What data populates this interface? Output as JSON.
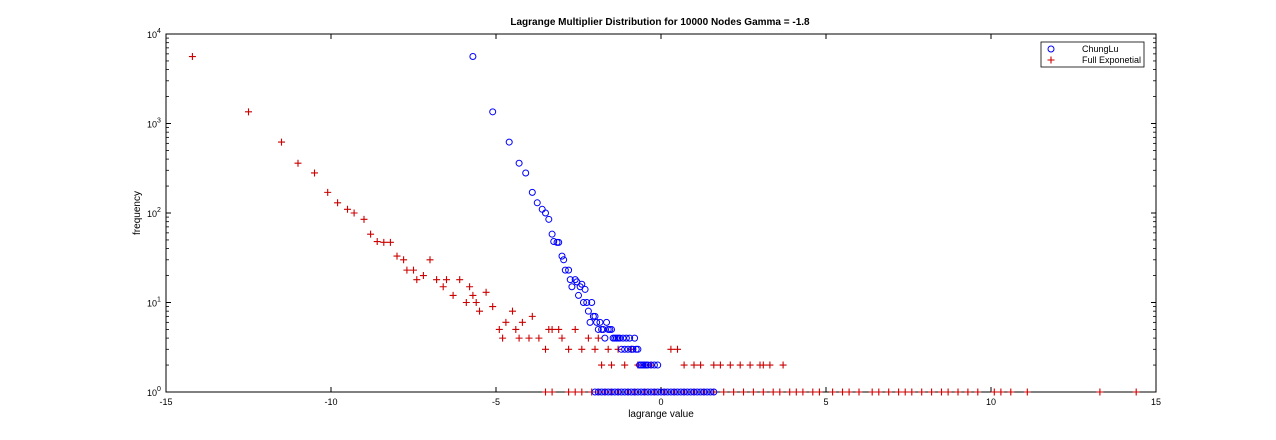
{
  "chart_data": {
    "type": "scatter",
    "title": "Lagrange Multiplier Distribution for 10000 Nodes Gamma = -1.8",
    "xlabel": "lagrange value",
    "ylabel": "frequency",
    "xlim": [
      -15,
      15
    ],
    "ylim": [
      1,
      10000
    ],
    "yscale": "log",
    "x_ticks": [
      "-15",
      "-10",
      "-5",
      "0",
      "5",
      "10",
      "15"
    ],
    "y_ticks": [
      {
        "base": "10",
        "exp": "0"
      },
      {
        "base": "10",
        "exp": "1"
      },
      {
        "base": "10",
        "exp": "2"
      },
      {
        "base": "10",
        "exp": "3"
      },
      {
        "base": "10",
        "exp": "4"
      }
    ],
    "legend_position": "top-right",
    "grid": false,
    "series": [
      {
        "name": "ChungLu",
        "marker": "circle",
        "color": "#0000ff",
        "points": [
          [
            -5.7,
            5600
          ],
          [
            -5.1,
            1350
          ],
          [
            -4.6,
            620
          ],
          [
            -4.3,
            360
          ],
          [
            -4.1,
            280
          ],
          [
            -3.9,
            170
          ],
          [
            -3.75,
            130
          ],
          [
            -3.6,
            110
          ],
          [
            -3.5,
            100
          ],
          [
            -3.4,
            85
          ],
          [
            -3.3,
            58
          ],
          [
            -3.25,
            48
          ],
          [
            -3.15,
            47
          ],
          [
            -3.1,
            47
          ],
          [
            -3.0,
            33
          ],
          [
            -2.95,
            30
          ],
          [
            -2.9,
            23
          ],
          [
            -2.8,
            23
          ],
          [
            -2.75,
            18
          ],
          [
            -2.7,
            15
          ],
          [
            -2.6,
            18
          ],
          [
            -2.55,
            17
          ],
          [
            -2.5,
            12
          ],
          [
            -2.45,
            15
          ],
          [
            -2.4,
            16
          ],
          [
            -2.35,
            10
          ],
          [
            -2.3,
            14
          ],
          [
            -2.25,
            10
          ],
          [
            -2.2,
            8
          ],
          [
            -2.15,
            6
          ],
          [
            -2.1,
            10
          ],
          [
            -2.05,
            7
          ],
          [
            -2.0,
            7
          ],
          [
            -1.95,
            6
          ],
          [
            -1.9,
            5
          ],
          [
            -1.85,
            6
          ],
          [
            -1.8,
            5
          ],
          [
            -1.75,
            5
          ],
          [
            -1.7,
            4
          ],
          [
            -1.65,
            6
          ],
          [
            -1.6,
            5
          ],
          [
            -1.55,
            5
          ],
          [
            -1.5,
            5
          ],
          [
            -1.45,
            4
          ],
          [
            -1.4,
            4
          ],
          [
            -1.35,
            4
          ],
          [
            -1.3,
            4
          ],
          [
            -1.25,
            4
          ],
          [
            -1.2,
            3
          ],
          [
            -1.15,
            4
          ],
          [
            -1.1,
            3
          ],
          [
            -1.05,
            4
          ],
          [
            -1.0,
            3
          ],
          [
            -0.95,
            4
          ],
          [
            -0.9,
            3
          ],
          [
            -0.85,
            3
          ],
          [
            -0.8,
            4
          ],
          [
            -0.75,
            3
          ],
          [
            -0.7,
            3
          ],
          [
            -0.65,
            2
          ],
          [
            -0.6,
            2
          ],
          [
            -0.55,
            2
          ],
          [
            -0.5,
            2
          ],
          [
            -0.45,
            2
          ],
          [
            -0.4,
            2
          ],
          [
            -0.3,
            2
          ],
          [
            -0.2,
            2
          ],
          [
            -0.1,
            2
          ],
          [
            -2.0,
            1
          ],
          [
            -1.9,
            1
          ],
          [
            -1.8,
            1
          ],
          [
            -1.7,
            1
          ],
          [
            -1.6,
            1
          ],
          [
            -1.5,
            1
          ],
          [
            -1.4,
            1
          ],
          [
            -1.3,
            1
          ],
          [
            -1.2,
            1
          ],
          [
            -1.1,
            1
          ],
          [
            -1.0,
            1
          ],
          [
            -0.9,
            1
          ],
          [
            -0.8,
            1
          ],
          [
            -0.7,
            1
          ],
          [
            -0.6,
            1
          ],
          [
            -0.5,
            1
          ],
          [
            -0.4,
            1
          ],
          [
            -0.3,
            1
          ],
          [
            -0.2,
            1
          ],
          [
            -0.1,
            1
          ],
          [
            0.0,
            1
          ],
          [
            0.1,
            1
          ],
          [
            0.2,
            1
          ],
          [
            0.3,
            1
          ],
          [
            0.4,
            1
          ],
          [
            0.5,
            1
          ],
          [
            0.6,
            1
          ],
          [
            0.7,
            1
          ],
          [
            0.8,
            1
          ],
          [
            0.9,
            1
          ],
          [
            1.0,
            1
          ],
          [
            1.1,
            1
          ],
          [
            1.2,
            1
          ],
          [
            1.3,
            1
          ],
          [
            1.4,
            1
          ],
          [
            1.5,
            1
          ],
          [
            1.6,
            1
          ]
        ]
      },
      {
        "name": "Full Exponetial",
        "marker": "plus",
        "color": "#cc0000",
        "points": [
          [
            -14.2,
            5600
          ],
          [
            -12.5,
            1350
          ],
          [
            -11.5,
            620
          ],
          [
            -11.0,
            360
          ],
          [
            -10.5,
            280
          ],
          [
            -10.1,
            170
          ],
          [
            -9.8,
            130
          ],
          [
            -9.5,
            110
          ],
          [
            -9.3,
            100
          ],
          [
            -9.0,
            85
          ],
          [
            -8.8,
            58
          ],
          [
            -8.6,
            48
          ],
          [
            -8.4,
            47
          ],
          [
            -8.2,
            47
          ],
          [
            -8.0,
            33
          ],
          [
            -7.8,
            30
          ],
          [
            -7.7,
            23
          ],
          [
            -7.5,
            23
          ],
          [
            -7.4,
            18
          ],
          [
            -7.2,
            20
          ],
          [
            -7.0,
            30
          ],
          [
            -6.8,
            18
          ],
          [
            -6.6,
            15
          ],
          [
            -6.5,
            18
          ],
          [
            -6.3,
            12
          ],
          [
            -6.1,
            18
          ],
          [
            -5.9,
            10
          ],
          [
            -5.8,
            15
          ],
          [
            -5.7,
            12
          ],
          [
            -5.6,
            10
          ],
          [
            -5.5,
            8
          ],
          [
            -5.3,
            13
          ],
          [
            -5.1,
            9
          ],
          [
            -4.9,
            5
          ],
          [
            -4.8,
            4
          ],
          [
            -4.7,
            6
          ],
          [
            -4.5,
            8
          ],
          [
            -4.4,
            5
          ],
          [
            -4.3,
            4
          ],
          [
            -4.2,
            6
          ],
          [
            -4.0,
            4
          ],
          [
            -3.9,
            7
          ],
          [
            -3.7,
            4
          ],
          [
            -3.5,
            3
          ],
          [
            -3.4,
            5
          ],
          [
            -3.3,
            5
          ],
          [
            -3.1,
            5
          ],
          [
            -3.0,
            4
          ],
          [
            -2.8,
            3
          ],
          [
            -2.6,
            5
          ],
          [
            -2.4,
            3
          ],
          [
            -2.2,
            4
          ],
          [
            -2.0,
            3
          ],
          [
            -1.9,
            4
          ],
          [
            -1.8,
            2
          ],
          [
            -1.6,
            3
          ],
          [
            -1.5,
            2
          ],
          [
            -1.3,
            3
          ],
          [
            -1.1,
            2
          ],
          [
            -0.9,
            3
          ],
          [
            -0.7,
            2
          ],
          [
            -0.5,
            2
          ],
          [
            -0.3,
            2
          ],
          [
            0.3,
            3
          ],
          [
            0.5,
            3
          ],
          [
            0.7,
            2
          ],
          [
            1.0,
            2
          ],
          [
            1.2,
            2
          ],
          [
            1.6,
            2
          ],
          [
            1.8,
            2
          ],
          [
            2.1,
            2
          ],
          [
            2.4,
            2
          ],
          [
            2.7,
            2
          ],
          [
            3.0,
            2
          ],
          [
            3.1,
            2
          ],
          [
            3.3,
            2
          ],
          [
            3.7,
            2
          ],
          [
            -3.5,
            1
          ],
          [
            -3.3,
            1
          ],
          [
            -2.8,
            1
          ],
          [
            -2.6,
            1
          ],
          [
            -2.4,
            1
          ],
          [
            -2.1,
            1
          ],
          [
            -1.9,
            1
          ],
          [
            -1.7,
            1
          ],
          [
            -1.5,
            1
          ],
          [
            -1.3,
            1
          ],
          [
            -1.0,
            1
          ],
          [
            -0.8,
            1
          ],
          [
            -0.5,
            1
          ],
          [
            -0.2,
            1
          ],
          [
            0.1,
            1
          ],
          [
            0.4,
            1
          ],
          [
            0.7,
            1
          ],
          [
            1.0,
            1
          ],
          [
            1.3,
            1
          ],
          [
            1.6,
            1
          ],
          [
            1.9,
            1
          ],
          [
            2.2,
            1
          ],
          [
            2.5,
            1
          ],
          [
            2.8,
            1
          ],
          [
            3.1,
            1
          ],
          [
            3.4,
            1
          ],
          [
            3.6,
            1
          ],
          [
            3.9,
            1
          ],
          [
            4.1,
            1
          ],
          [
            4.3,
            1
          ],
          [
            4.6,
            1
          ],
          [
            4.8,
            1
          ],
          [
            5.2,
            1
          ],
          [
            5.5,
            1
          ],
          [
            5.7,
            1
          ],
          [
            6.0,
            1
          ],
          [
            6.4,
            1
          ],
          [
            6.6,
            1
          ],
          [
            6.9,
            1
          ],
          [
            7.2,
            1
          ],
          [
            7.4,
            1
          ],
          [
            7.6,
            1
          ],
          [
            7.9,
            1
          ],
          [
            8.2,
            1
          ],
          [
            8.5,
            1
          ],
          [
            8.7,
            1
          ],
          [
            9.0,
            1
          ],
          [
            9.3,
            1
          ],
          [
            9.6,
            1
          ],
          [
            10.1,
            1
          ],
          [
            10.3,
            1
          ],
          [
            10.6,
            1
          ],
          [
            11.1,
            1
          ],
          [
            13.3,
            1
          ],
          [
            14.4,
            1
          ]
        ]
      }
    ]
  }
}
